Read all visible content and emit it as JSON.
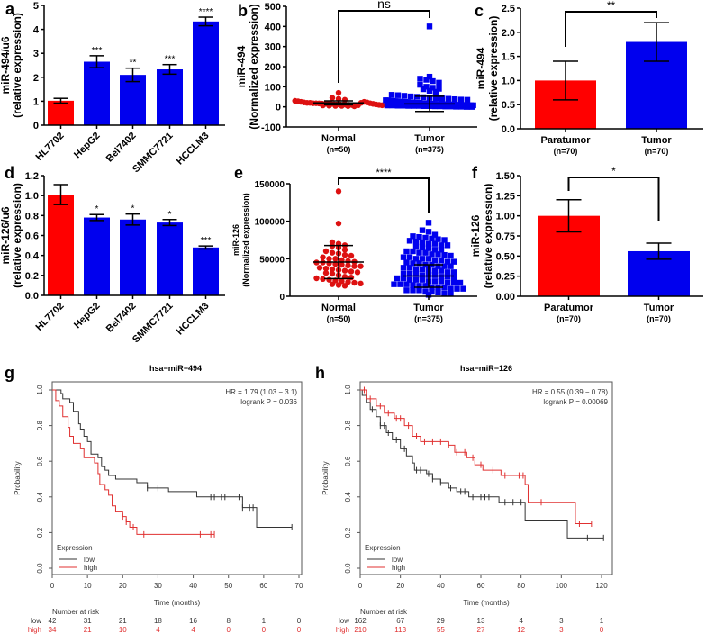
{
  "chart_data": [
    {
      "panel": "a",
      "type": "bar",
      "ylabel": [
        "miR-494/u6",
        "(relative expression)"
      ],
      "ylim": [
        0,
        5
      ],
      "yticks": [
        "0",
        "1",
        "2",
        "3",
        "4",
        "5"
      ],
      "categories": [
        "HL7702",
        "HepG2",
        "Bel7402",
        "SMMC7721",
        "HCCLM3"
      ],
      "values": [
        1.02,
        2.65,
        2.1,
        2.33,
        4.33
      ],
      "errors": [
        0.1,
        0.25,
        0.28,
        0.2,
        0.18
      ],
      "significance": [
        "",
        "***",
        "**",
        "***",
        "****"
      ],
      "colors": [
        "#ff0000",
        "#0000ee",
        "#0000ee",
        "#0000ee",
        "#0000ee"
      ]
    },
    {
      "panel": "b",
      "type": "scatter",
      "ylabel": [
        "miR-494",
        "(Normalized expression)"
      ],
      "ylim": [
        -100,
        500
      ],
      "yticks": [
        "-100",
        "0",
        "100",
        "200",
        "300",
        "400",
        "500"
      ],
      "significance": "ns",
      "groups": [
        {
          "name": "Normal",
          "n": "(n=50)",
          "color": "#dd1111",
          "marker": "circle",
          "mean": 20,
          "sd": 10,
          "values": [
            70,
            45,
            40,
            35,
            30,
            28,
            25,
            22,
            20,
            20,
            18,
            18,
            17,
            16,
            15,
            15,
            14,
            13,
            12,
            12,
            11,
            10,
            10,
            9,
            8,
            8,
            7,
            6,
            5,
            5,
            4,
            3,
            20,
            25,
            22,
            18,
            15,
            12,
            10,
            8
          ]
        },
        {
          "name": "Tumor",
          "n": "(n=375)",
          "color": "#0000ee",
          "marker": "square",
          "mean": 15,
          "sd": 38,
          "values": [
            400,
            150,
            140,
            135,
            128,
            120,
            110,
            100,
            95,
            90,
            88,
            80,
            75,
            60,
            58,
            55,
            52,
            50,
            48,
            45,
            44,
            42,
            40,
            38,
            36,
            35,
            33,
            32,
            30,
            30,
            28,
            28,
            26,
            25,
            25,
            24,
            22,
            22,
            20,
            20,
            20,
            18,
            18,
            18,
            16,
            16,
            15,
            15,
            14,
            14,
            13,
            12,
            12,
            12,
            11,
            10,
            10,
            10,
            9,
            9,
            8,
            8,
            8,
            7,
            7,
            6,
            6,
            5,
            5,
            5,
            4,
            4,
            3,
            3,
            2,
            2,
            1,
            1,
            0,
            0
          ]
        }
      ]
    },
    {
      "panel": "c",
      "type": "bar",
      "ylabel": [
        "miR-494",
        "(relative expression)"
      ],
      "ylim": [
        0,
        2.5
      ],
      "yticks": [
        "0.0",
        "0.5",
        "1.0",
        "1.5",
        "2.0",
        "2.5"
      ],
      "categories": [
        "Paratumor",
        "Tumor"
      ],
      "n": [
        "(n=70)",
        "(n=70)"
      ],
      "values": [
        1.0,
        1.8
      ],
      "errors": [
        0.4,
        0.4
      ],
      "significance": "**",
      "colors": [
        "#ff0000",
        "#0000ee"
      ]
    },
    {
      "panel": "d",
      "type": "bar",
      "ylabel": [
        "miR-126/u6",
        "(relative expression)"
      ],
      "ylim": [
        0,
        1.2
      ],
      "yticks": [
        "0.0",
        "0.2",
        "0.4",
        "0.6",
        "0.8",
        "1.0",
        "1.2"
      ],
      "categories": [
        "HL7702",
        "HepG2",
        "Bel7402",
        "SMMC7721",
        "HCCLM3"
      ],
      "values": [
        1.01,
        0.78,
        0.76,
        0.73,
        0.48
      ],
      "errors": [
        0.1,
        0.03,
        0.055,
        0.03,
        0.015
      ],
      "significance": [
        "",
        "*",
        "*",
        "*",
        "***"
      ],
      "colors": [
        "#ff0000",
        "#0000ee",
        "#0000ee",
        "#0000ee",
        "#0000ee"
      ]
    },
    {
      "panel": "e",
      "type": "scatter",
      "ylabel": [
        "miR-126",
        "(Normalized expression)"
      ],
      "ylim": [
        0,
        150000
      ],
      "yticks": [
        "0",
        "50000",
        "100000",
        "150000"
      ],
      "significance": "****",
      "groups": [
        {
          "name": "Normal",
          "n": "(n=50)",
          "color": "#dd1111",
          "marker": "circle",
          "mean": 45600,
          "sd": 22000,
          "values": [
            140000,
            97000,
            72000,
            70000,
            68000,
            67000,
            65000,
            62000,
            60000,
            58000,
            57000,
            55000,
            54000,
            52000,
            50000,
            50000,
            48000,
            47000,
            46000,
            45000,
            45000,
            44000,
            43000,
            42000,
            41000,
            40000,
            40000,
            38000,
            37000,
            36000,
            35000,
            34000,
            33000,
            32000,
            31000,
            30000,
            28000,
            26000,
            25000,
            24000,
            23000,
            22000,
            21000,
            20000,
            19000,
            18000,
            17000,
            16000,
            15000,
            14000
          ]
        },
        {
          "name": "Tumor",
          "n": "(n=375)",
          "color": "#0000ee",
          "marker": "square",
          "mean": 27000,
          "sd": 15000,
          "values": [
            98000,
            88000,
            86000,
            82000,
            80000,
            79000,
            78000,
            77000,
            76000,
            75000,
            74000,
            73000,
            72000,
            70000,
            70000,
            68000,
            68000,
            66000,
            65000,
            64000,
            62000,
            62000,
            60000,
            60000,
            58000,
            58000,
            56000,
            56000,
            55000,
            54000,
            52000,
            52000,
            50000,
            50000,
            50000,
            48000,
            48000,
            46000,
            46000,
            45000,
            44000,
            44000,
            42000,
            42000,
            40000,
            40000,
            40000,
            38000,
            38000,
            36000,
            36000,
            35000,
            34000,
            34000,
            32000,
            32000,
            30000,
            30000,
            30000,
            28000,
            28000,
            28000,
            26000,
            26000,
            25000,
            24000,
            24000,
            22000,
            22000,
            22000,
            20000,
            20000,
            20000,
            18000,
            18000,
            18000,
            16000,
            16000,
            16000,
            15000,
            14000,
            14000,
            12000,
            12000,
            12000,
            10000,
            10000,
            10000,
            8000,
            8000,
            8000,
            6000,
            6000,
            5000,
            4000,
            4000,
            2000
          ]
        }
      ]
    },
    {
      "panel": "f",
      "type": "bar",
      "ylabel": [
        "miR-126",
        "(relative expression)"
      ],
      "ylim": [
        0,
        1.5
      ],
      "yticks": [
        "0.00",
        "0.25",
        "0.50",
        "0.75",
        "1.00",
        "1.25",
        "1.50"
      ],
      "categories": [
        "Paratumor",
        "Tumor"
      ],
      "n": [
        "(n=70)",
        "(n=70)"
      ],
      "values": [
        1.0,
        0.56
      ],
      "errors": [
        0.2,
        0.1
      ],
      "significance": "*",
      "colors": [
        "#ff0000",
        "#0000ee"
      ]
    },
    {
      "panel": "g",
      "type": "line",
      "title": "hsa−miR−494",
      "xlabel": "Time (months)",
      "ylabel": "Probability",
      "xlim": [
        0,
        70
      ],
      "ylim": [
        0,
        1
      ],
      "xticks": [
        "0",
        "10",
        "20",
        "30",
        "40",
        "50",
        "60",
        "70"
      ],
      "yticks": [
        "0.0",
        "0.2",
        "0.4",
        "0.6",
        "0.8",
        "1.0"
      ],
      "hr": "HR = 1.79 (1.03 − 3.1)",
      "logrank": "logrank P = 0.036",
      "legend_title": "Expression",
      "legend_position": "bottom-left",
      "series": [
        {
          "name": "low",
          "color": "#333333",
          "steps": [
            [
              0,
              1
            ],
            [
              2.5,
              0.98
            ],
            [
              3,
              0.95
            ],
            [
              5,
              0.93
            ],
            [
              6,
              0.88
            ],
            [
              7.5,
              0.81
            ],
            [
              8,
              0.78
            ],
            [
              9,
              0.74
            ],
            [
              10,
              0.71
            ],
            [
              11,
              0.64
            ],
            [
              13,
              0.62
            ],
            [
              14,
              0.57
            ],
            [
              15,
              0.55
            ],
            [
              16,
              0.52
            ],
            [
              18,
              0.5
            ],
            [
              24,
              0.48
            ],
            [
              27,
              0.45
            ],
            [
              33,
              0.43
            ],
            [
              41,
              0.4
            ],
            [
              54,
              0.34
            ],
            [
              58,
              0.23
            ],
            [
              68,
              0.23
            ]
          ],
          "censored": [
            27,
            30,
            45,
            46,
            48,
            49,
            53,
            54,
            56,
            57,
            68
          ]
        },
        {
          "name": "high",
          "color": "#e03030",
          "steps": [
            [
              0,
              1
            ],
            [
              1,
              0.94
            ],
            [
              2,
              0.91
            ],
            [
              3,
              0.85
            ],
            [
              4.5,
              0.79
            ],
            [
              5,
              0.74
            ],
            [
              6,
              0.7
            ],
            [
              8,
              0.67
            ],
            [
              9,
              0.62
            ],
            [
              12,
              0.59
            ],
            [
              13,
              0.53
            ],
            [
              13.5,
              0.47
            ],
            [
              15,
              0.44
            ],
            [
              16,
              0.41
            ],
            [
              17,
              0.35
            ],
            [
              18,
              0.32
            ],
            [
              20,
              0.29
            ],
            [
              21,
              0.26
            ],
            [
              22,
              0.23
            ],
            [
              24,
              0.19
            ],
            [
              46,
              0.19
            ]
          ],
          "censored": [
            20,
            21,
            23,
            26,
            42,
            45,
            46
          ]
        }
      ],
      "risk_table": {
        "title": "Number at risk",
        "rows": [
          {
            "label": "low",
            "values": [
              "42",
              "31",
              "21",
              "18",
              "16",
              "8",
              "1",
              "0"
            ]
          },
          {
            "label": "high",
            "values": [
              "34",
              "21",
              "10",
              "4",
              "4",
              "0",
              "0",
              "0"
            ]
          }
        ]
      }
    },
    {
      "panel": "h",
      "type": "line",
      "title": "hsa−miR−126",
      "xlabel": "Time (months)",
      "ylabel": "Probability",
      "xlim": [
        0,
        120
      ],
      "ylim": [
        0,
        1
      ],
      "xticks": [
        "0",
        "20",
        "40",
        "60",
        "80",
        "100",
        "120"
      ],
      "yticks": [
        "0.0",
        "0.2",
        "0.4",
        "0.6",
        "0.8",
        "1.0"
      ],
      "hr": "HR = 0.55 (0.39 − 0.78)",
      "logrank": "logrank P = 0.00069",
      "legend_title": "Expression",
      "legend_position": "bottom-left",
      "series": [
        {
          "name": "low",
          "color": "#333333",
          "steps": [
            [
              0,
              1
            ],
            [
              1,
              0.97
            ],
            [
              3,
              0.93
            ],
            [
              5,
              0.89
            ],
            [
              8,
              0.85
            ],
            [
              10,
              0.8
            ],
            [
              13,
              0.76
            ],
            [
              16,
              0.72
            ],
            [
              20,
              0.67
            ],
            [
              23,
              0.63
            ],
            [
              26,
              0.59
            ],
            [
              27,
              0.55
            ],
            [
              33,
              0.53
            ],
            [
              36,
              0.5
            ],
            [
              40,
              0.48
            ],
            [
              44,
              0.45
            ],
            [
              48,
              0.43
            ],
            [
              54,
              0.4
            ],
            [
              69,
              0.37
            ],
            [
              82,
              0.27
            ],
            [
              103,
              0.17
            ],
            [
              121,
              0.17
            ]
          ],
          "censored": [
            6,
            10,
            12,
            14,
            18,
            22,
            28,
            30,
            34,
            36,
            40,
            45,
            50,
            52,
            56,
            60,
            62,
            64,
            72,
            76,
            80,
            113,
            121
          ]
        },
        {
          "name": "high",
          "color": "#e03030",
          "steps": [
            [
              0,
              1
            ],
            [
              3,
              0.95
            ],
            [
              8,
              0.91
            ],
            [
              12,
              0.87
            ],
            [
              17,
              0.84
            ],
            [
              22,
              0.8
            ],
            [
              26,
              0.74
            ],
            [
              30,
              0.71
            ],
            [
              44,
              0.69
            ],
            [
              47,
              0.65
            ],
            [
              53,
              0.62
            ],
            [
              57,
              0.58
            ],
            [
              61,
              0.55
            ],
            [
              70,
              0.52
            ],
            [
              82,
              0.47
            ],
            [
              83.5,
              0.37
            ],
            [
              107,
              0.25
            ],
            [
              115,
              0.25
            ]
          ],
          "censored": [
            2,
            5,
            10,
            14,
            18,
            20,
            24,
            28,
            32,
            36,
            40,
            44,
            48,
            52,
            56,
            60,
            66,
            72,
            75,
            79,
            81,
            90,
            109,
            115
          ]
        }
      ],
      "risk_table": {
        "title": "Number at risk",
        "rows": [
          {
            "label": "low",
            "values": [
              "162",
              "67",
              "29",
              "13",
              "4",
              "3",
              "1"
            ]
          },
          {
            "label": "high",
            "values": [
              "210",
              "113",
              "55",
              "27",
              "12",
              "3",
              "0"
            ]
          }
        ]
      }
    }
  ]
}
